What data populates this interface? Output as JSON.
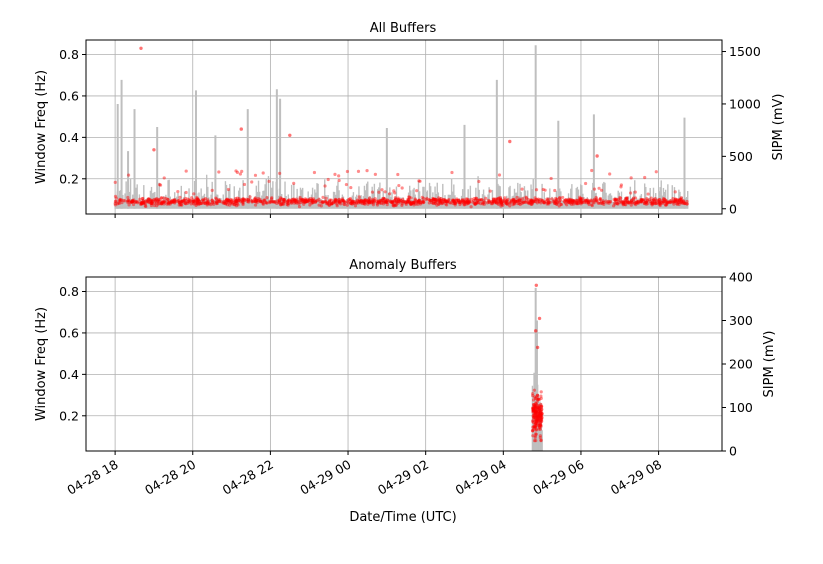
{
  "chart_data": [
    {
      "type": "line",
      "title": "All Buffers",
      "xlabel": "",
      "ylabel": "Window Freq (Hz)",
      "ylabel_right": "SIPM (mV)",
      "ylim": [
        0.03,
        0.87
      ],
      "ylim_right": [
        -50,
        1610
      ],
      "yticks": [
        "0.2",
        "0.4",
        "0.6",
        "0.8"
      ],
      "yticks_right": [
        "0",
        "500",
        "1000",
        "1500"
      ],
      "xticks": [],
      "grid": true,
      "series": [
        {
          "role": "window_freq",
          "color": "#ff0000",
          "marker": "dots",
          "x_range": [
            "04-28 18:00",
            "04-29 08:45"
          ],
          "baseline_mean": 0.09,
          "baseline_spread": [
            0.06,
            0.12
          ],
          "outliers": [
            {
              "x": "04-28 18:40",
              "y": 0.83
            },
            {
              "x": "04-28 21:15",
              "y": 0.44
            },
            {
              "x": "04-28 22:30",
              "y": 0.41
            },
            {
              "x": "04-29 04:10",
              "y": 0.38
            },
            {
              "x": "04-28 19:00",
              "y": 0.34
            },
            {
              "x": "04-29 06:25",
              "y": 0.31
            }
          ]
        },
        {
          "role": "sipm",
          "color": "#bfbfbf",
          "marker": "line",
          "peaks": [
            {
              "x": "04-28 18:04",
              "y": 1000
            },
            {
              "x": "04-28 18:10",
              "y": 1230
            },
            {
              "x": "04-28 18:20",
              "y": 550
            },
            {
              "x": "04-28 18:30",
              "y": 950
            },
            {
              "x": "04-28 19:05",
              "y": 780
            },
            {
              "x": "04-28 20:05",
              "y": 1130
            },
            {
              "x": "04-28 20:35",
              "y": 700
            },
            {
              "x": "04-28 21:25",
              "y": 950
            },
            {
              "x": "04-28 22:10",
              "y": 1140
            },
            {
              "x": "04-28 22:15",
              "y": 1050
            },
            {
              "x": "04-29 01:00",
              "y": 770
            },
            {
              "x": "04-29 03:00",
              "y": 800
            },
            {
              "x": "04-29 03:50",
              "y": 1230
            },
            {
              "x": "04-29 04:50",
              "y": 1560
            },
            {
              "x": "04-29 05:25",
              "y": 840
            },
            {
              "x": "04-29 06:20",
              "y": 900
            },
            {
              "x": "04-29 08:40",
              "y": 870
            }
          ],
          "baseline_mean": 150
        }
      ]
    },
    {
      "type": "line",
      "title": "Anomaly Buffers",
      "xlabel": "Date/Time (UTC)",
      "ylabel": "Window Freq (Hz)",
      "ylabel_right": "SIPM (mV)",
      "ylim": [
        0.03,
        0.87
      ],
      "ylim_right": [
        0,
        400
      ],
      "yticks": [
        "0.2",
        "0.4",
        "0.6",
        "0.8"
      ],
      "yticks_right": [
        "0",
        "100",
        "200",
        "300",
        "400"
      ],
      "xticks": [
        "04-28 18",
        "04-28 20",
        "04-28 22",
        "04-29 00",
        "04-29 02",
        "04-29 04",
        "04-29 06",
        "04-29 08"
      ],
      "grid": true,
      "series": [
        {
          "role": "window_freq",
          "color": "#ff0000",
          "marker": "dots",
          "x_range": [
            "04-29 04:45",
            "04-29 05:00"
          ],
          "baseline_mean": 0.2,
          "baseline_spread": [
            0.08,
            0.45
          ],
          "outliers": [
            {
              "x": "04-29 04:51",
              "y": 0.83
            },
            {
              "x": "04-29 04:56",
              "y": 0.67
            },
            {
              "x": "04-29 04:50",
              "y": 0.61
            },
            {
              "x": "04-29 04:53",
              "y": 0.53
            }
          ]
        },
        {
          "role": "sipm",
          "color": "#bfbfbf",
          "marker": "line",
          "peaks": [
            {
              "x": "04-29 04:50",
              "y": 375
            },
            {
              "x": "04-29 04:52",
              "y": 300
            },
            {
              "x": "04-29 04:48",
              "y": 180
            }
          ],
          "baseline_mean": 80
        }
      ]
    }
  ]
}
